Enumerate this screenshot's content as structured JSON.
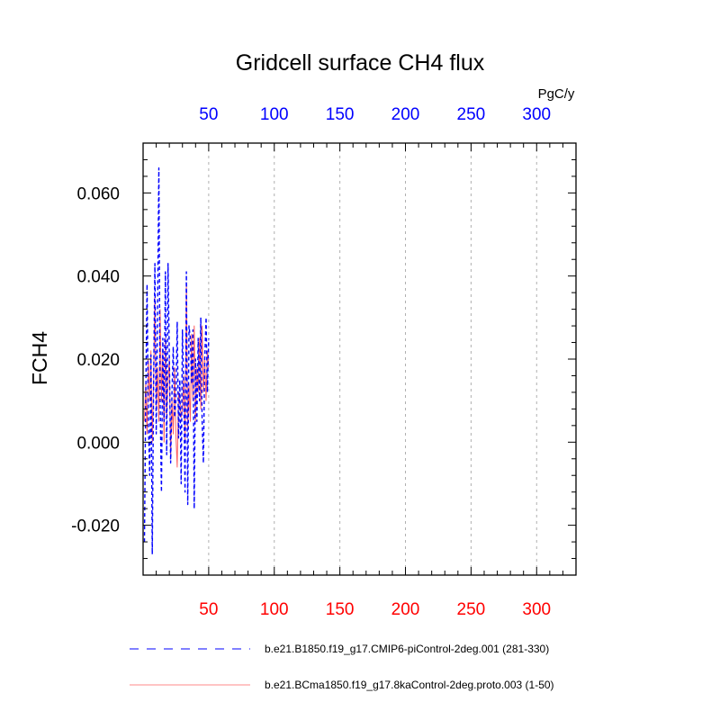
{
  "chart_data": {
    "type": "line",
    "title": "Gridcell surface CH4 flux",
    "ylabel": "FCH4",
    "top_units": "PgC/y",
    "xlim": [
      0,
      330
    ],
    "ylim": [
      -0.032,
      0.072
    ],
    "xticks": [
      50,
      100,
      150,
      200,
      250,
      300
    ],
    "xtick_labels": [
      "50",
      "100",
      "150",
      "200",
      "250",
      "300"
    ],
    "yticks": [
      -0.02,
      0.0,
      0.02,
      0.04,
      0.06
    ],
    "ytick_labels": [
      "-0.020",
      "0.000",
      "0.020",
      "0.040",
      "0.060"
    ],
    "grid": "vertical dashed",
    "colors": {
      "series1": "#0000ff",
      "series2": "#ff6060",
      "bottom_ticks": "#ff0000",
      "top_ticks": "#0000ff"
    },
    "series": [
      {
        "name": "b.e21.B1850.f19_g17.CMIP6-piControl-2deg.001 (281-330)",
        "style": "dashed",
        "x": [
          1,
          2,
          3,
          4,
          5,
          6,
          7,
          8,
          9,
          10,
          11,
          12,
          13,
          14,
          15,
          16,
          17,
          18,
          19,
          20,
          21,
          22,
          23,
          24,
          25,
          26,
          27,
          28,
          29,
          30,
          31,
          32,
          33,
          34,
          35,
          36,
          37,
          38,
          39,
          40,
          41,
          42,
          43,
          44,
          45,
          46,
          47,
          48,
          49,
          50
        ],
        "values": [
          -0.024,
          0.01,
          0.038,
          0.005,
          -0.008,
          0.021,
          -0.027,
          0.015,
          0.043,
          0.002,
          0.03,
          0.066,
          0.01,
          -0.012,
          0.025,
          0.005,
          0.041,
          -0.003,
          0.043,
          0.02,
          -0.005,
          0.012,
          0.023,
          0.006,
          0.01,
          0.029,
          0.001,
          0.015,
          -0.01,
          0.027,
          0.012,
          -0.012,
          0.041,
          -0.015,
          0.028,
          0.025,
          0.014,
          0.027,
          -0.016,
          0.02,
          0.005,
          0.025,
          0.01,
          0.03,
          0.005,
          -0.005,
          0.02,
          0.03,
          0.012,
          0.025
        ]
      },
      {
        "name": "b.e21.BCma1850.f19_g17.8kaControl-2deg.proto.003 (1-50)",
        "style": "solid",
        "x": [
          1,
          2,
          3,
          4,
          5,
          6,
          7,
          8,
          9,
          10,
          11,
          12,
          13,
          14,
          15,
          16,
          17,
          18,
          19,
          20,
          21,
          22,
          23,
          24,
          25,
          26,
          27,
          28,
          29,
          30,
          31,
          32,
          33,
          34,
          35,
          36,
          37,
          38,
          39,
          40,
          41,
          42,
          43,
          44,
          45,
          46,
          47,
          48,
          49,
          50
        ],
        "values": [
          0.005,
          0.014,
          0.002,
          0.02,
          0.01,
          0.022,
          0.0,
          0.015,
          0.035,
          0.008,
          0.018,
          0.005,
          0.032,
          0.01,
          0.022,
          0.0,
          0.025,
          0.006,
          0.015,
          0.02,
          -0.004,
          0.01,
          0.002,
          0.018,
          0.002,
          -0.006,
          0.012,
          0.01,
          0.006,
          0.008,
          0.016,
          0.0,
          0.038,
          0.003,
          0.014,
          0.005,
          0.026,
          0.01,
          0.028,
          0.005,
          0.018,
          0.012,
          0.025,
          0.008,
          0.028,
          0.012,
          0.02,
          0.01,
          0.022,
          0.018
        ]
      }
    ]
  }
}
